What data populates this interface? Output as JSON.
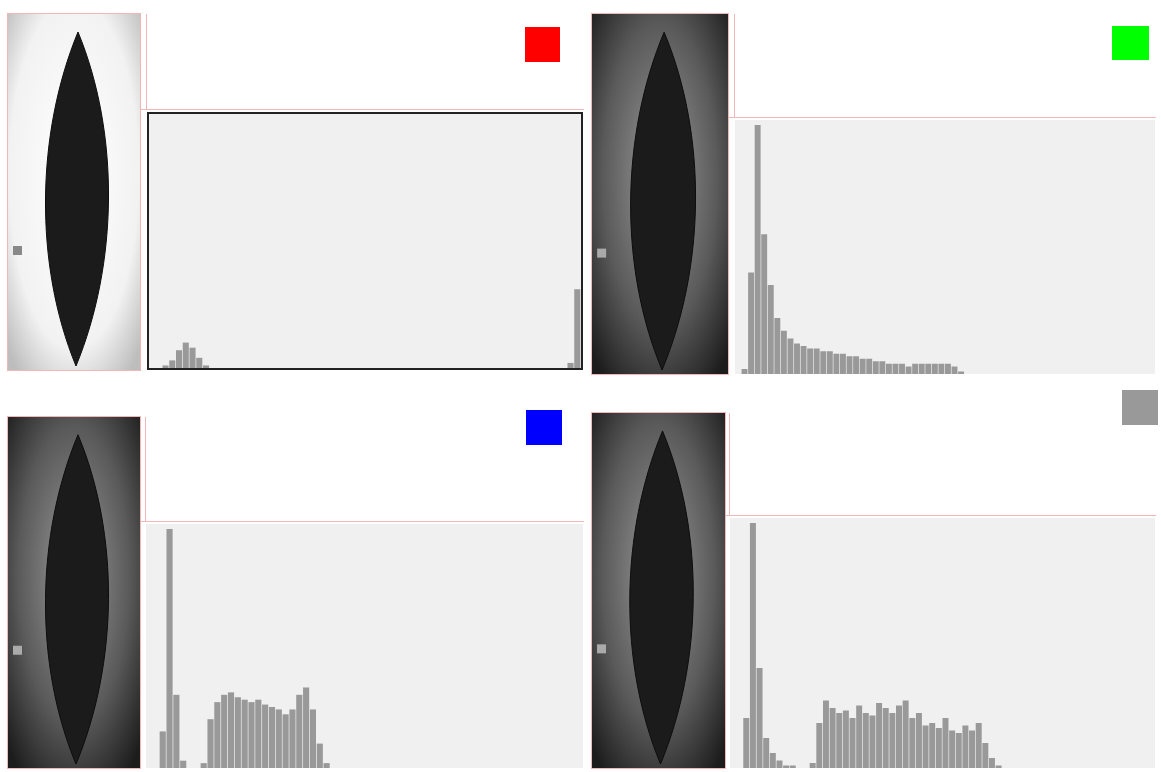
{
  "chart_data": [
    {
      "type": "histogram",
      "color": "#ff0000",
      "tick_labels": false,
      "xlim": [
        0,
        256
      ],
      "ylim": [
        0,
        100
      ],
      "bins": [
        0,
        4,
        8,
        12,
        16,
        20,
        24,
        28,
        32,
        36,
        40,
        44,
        48,
        52,
        56,
        60,
        64,
        68,
        72,
        76,
        80,
        84,
        88,
        92,
        96,
        100,
        104,
        108,
        112,
        116,
        120,
        124,
        128,
        132,
        136,
        140,
        144,
        148,
        152,
        156,
        160,
        164,
        168,
        172,
        176,
        180,
        184,
        188,
        192,
        196,
        200,
        204,
        208,
        212,
        216,
        220,
        224,
        228,
        232,
        236,
        240,
        244,
        248,
        252,
        256
      ],
      "values": [
        0,
        0,
        1,
        3,
        7,
        10,
        8,
        4,
        1,
        0,
        0,
        0,
        0,
        0,
        0,
        0,
        0,
        0,
        0,
        0,
        0,
        0,
        0,
        0,
        0,
        0,
        0,
        0,
        0,
        0,
        0,
        0,
        0,
        0,
        0,
        0,
        0,
        0,
        0,
        0,
        0,
        0,
        0,
        0,
        0,
        0,
        0,
        0,
        0,
        0,
        0,
        0,
        0,
        0,
        0,
        0,
        0,
        0,
        0,
        0,
        0,
        0,
        2,
        31
      ]
    },
    {
      "type": "histogram",
      "color": "#00ff00",
      "tick_labels": false,
      "xlim": [
        0,
        256
      ],
      "ylim": [
        0,
        100
      ],
      "bins": [
        0,
        4,
        8,
        12,
        16,
        20,
        24,
        28,
        32,
        36,
        40,
        44,
        48,
        52,
        56,
        60,
        64,
        68,
        72,
        76,
        80,
        84,
        88,
        92,
        96,
        100,
        104,
        108,
        112,
        116,
        120,
        124,
        128,
        132,
        136,
        140,
        144,
        148,
        152,
        156,
        160,
        164,
        168,
        172,
        176,
        180,
        184,
        188,
        192,
        196,
        200,
        204,
        208,
        212,
        216,
        220,
        224,
        228,
        232,
        236,
        240,
        244,
        248,
        252,
        256
      ],
      "values": [
        0,
        2,
        40,
        98,
        55,
        35,
        22,
        17,
        14,
        12,
        11,
        10,
        10,
        9,
        9,
        8,
        8,
        7,
        7,
        6,
        6,
        5,
        5,
        4,
        4,
        4,
        3,
        4,
        4,
        4,
        4,
        4,
        4,
        3,
        1,
        0,
        0,
        0,
        0,
        0,
        0,
        0,
        0,
        0,
        0,
        0,
        0,
        0,
        0,
        0,
        0,
        0,
        0,
        0,
        0,
        0,
        0,
        0,
        0,
        0,
        0,
        0,
        0,
        0
      ]
    },
    {
      "type": "histogram",
      "color": "#0000ff",
      "tick_labels": false,
      "xlim": [
        0,
        256
      ],
      "ylim": [
        0,
        100
      ],
      "bins": [
        0,
        4,
        8,
        12,
        16,
        20,
        24,
        28,
        32,
        36,
        40,
        44,
        48,
        52,
        56,
        60,
        64,
        68,
        72,
        76,
        80,
        84,
        88,
        92,
        96,
        100,
        104,
        108,
        112,
        116,
        120,
        124,
        128,
        132,
        136,
        140,
        144,
        148,
        152,
        156,
        160,
        164,
        168,
        172,
        176,
        180,
        184,
        188,
        192,
        196,
        200,
        204,
        208,
        212,
        216,
        220,
        224,
        228,
        232,
        236,
        240,
        244,
        248,
        252,
        256
      ],
      "values": [
        0,
        0,
        15,
        98,
        30,
        3,
        0,
        0,
        2,
        20,
        27,
        30,
        31,
        29,
        28,
        27,
        28,
        26,
        25,
        24,
        22,
        24,
        30,
        33,
        24,
        10,
        2,
        0,
        0,
        0,
        0,
        0,
        0,
        0,
        0,
        0,
        0,
        0,
        0,
        0,
        0,
        0,
        0,
        0,
        0,
        0,
        0,
        0,
        0,
        0,
        0,
        0,
        0,
        0,
        0,
        0,
        0,
        0,
        0,
        0,
        0,
        0,
        0,
        0
      ]
    },
    {
      "type": "histogram",
      "color": "#999999",
      "tick_labels": false,
      "xlim": [
        0,
        256
      ],
      "ylim": [
        0,
        100
      ],
      "bins": [
        0,
        4,
        8,
        12,
        16,
        20,
        24,
        28,
        32,
        36,
        40,
        44,
        48,
        52,
        56,
        60,
        64,
        68,
        72,
        76,
        80,
        84,
        88,
        92,
        96,
        100,
        104,
        108,
        112,
        116,
        120,
        124,
        128,
        132,
        136,
        140,
        144,
        148,
        152,
        156,
        160,
        164,
        168,
        172,
        176,
        180,
        184,
        188,
        192,
        196,
        200,
        204,
        208,
        212,
        216,
        220,
        224,
        228,
        232,
        236,
        240,
        244,
        248,
        252,
        256
      ],
      "values": [
        0,
        0,
        20,
        98,
        40,
        12,
        6,
        3,
        1,
        1,
        0,
        0,
        2,
        18,
        27,
        24,
        22,
        23,
        20,
        25,
        22,
        21,
        26,
        24,
        22,
        25,
        27,
        20,
        22,
        17,
        18,
        16,
        20,
        15,
        14,
        17,
        15,
        18,
        10,
        4,
        1,
        0,
        0,
        0,
        0,
        0,
        0,
        0,
        0,
        0,
        0,
        0,
        0,
        0,
        0,
        0,
        0,
        0,
        0,
        0,
        0,
        0,
        0,
        0
      ]
    }
  ]
}
